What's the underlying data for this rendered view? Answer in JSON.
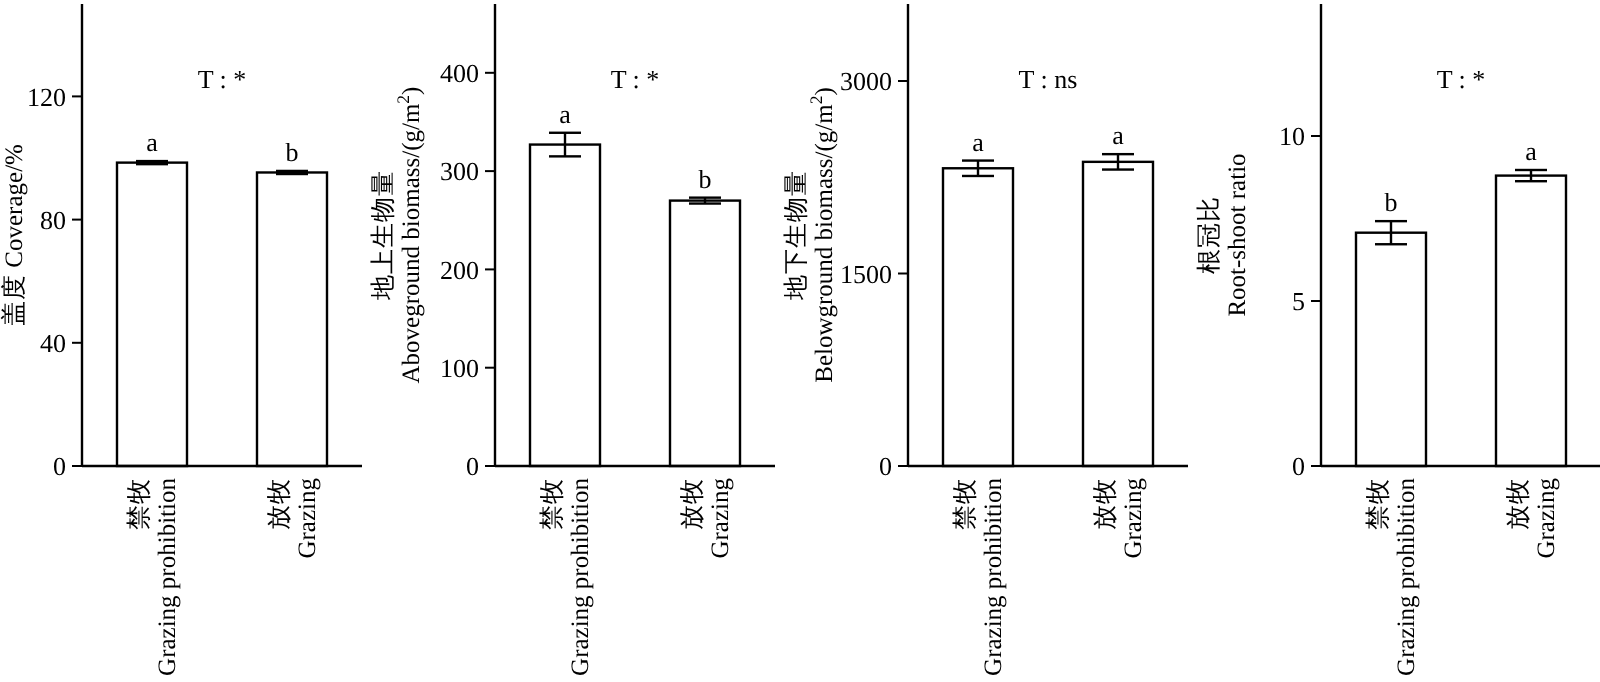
{
  "chart_data": [
    {
      "type": "bar",
      "ylabel": "盖度 Coverage/%",
      "categories": [
        "禁牧\nGrazing prohibition",
        "放牧\nGrazing"
      ],
      "values": [
        98.5,
        95.3
      ],
      "errors": [
        0.5,
        0.5
      ],
      "color": "#ffffff",
      "ylim": [
        0,
        150
      ],
      "yticks": [
        0,
        40,
        80,
        120
      ],
      "grid": false,
      "annotations": [
        "T : *",
        {
          "text": "a",
          "x": "禁牧\nGrazing prohibition",
          "y": 99
        },
        {
          "text": "b",
          "x": "放牧\nGrazing",
          "y": 95.8
        }
      ]
    },
    {
      "type": "bar",
      "ylabel": "地上生物量\nAboveground biomass/(g/m$^{2}$)",
      "categories": [
        "禁牧\nGrazing prohibition",
        "放牧\nGrazing"
      ],
      "values": [
        327,
        270
      ],
      "errors": [
        12,
        3
      ],
      "color": "#ffffff",
      "ylim": [
        0,
        470
      ],
      "yticks": [
        0,
        100,
        200,
        300,
        400
      ],
      "grid": false,
      "annotations": [
        "T : *",
        {
          "text": "a",
          "x": "禁牧\nGrazing prohibition",
          "y": 339
        },
        {
          "text": "b",
          "x": "放牧\nGrazing",
          "y": 273
        }
      ]
    },
    {
      "type": "bar",
      "ylabel": "地下生物量\nBelowground biomass/(g/m$^{2}$)",
      "categories": [
        "禁牧\nGrazing prohibition",
        "放牧\nGrazing"
      ],
      "values": [
        2320,
        2370
      ],
      "errors": [
        60,
        60
      ],
      "color": "#ffffff",
      "ylim": [
        0,
        3600
      ],
      "yticks": [
        0,
        1500,
        3000
      ],
      "grid": false,
      "annotations": [
        "T : ns",
        {
          "text": "a",
          "x": "禁牧\nGrazing prohibition",
          "y": 2375
        },
        {
          "text": "a",
          "x": "放牧\nGrazing",
          "y": 2430
        }
      ]
    },
    {
      "type": "bar",
      "ylabel": "根冠比\nRoot-shoot ratio",
      "categories": [
        "禁牧\nGrazing prohibition",
        "放牧\nGrazing"
      ],
      "values": [
        7.07,
        8.8
      ],
      "errors": [
        0.35,
        0.17
      ],
      "color": "#ffffff",
      "ylim": [
        0,
        14
      ],
      "yticks": [
        0,
        5,
        10
      ],
      "grid": false,
      "annotations": [
        "T : *",
        {
          "text": "b",
          "x": "禁牧\nGrazing prohibition",
          "y": 7.42
        },
        {
          "text": "a",
          "x": "放牧\nGrazing",
          "y": 8.97
        }
      ]
    }
  ]
}
